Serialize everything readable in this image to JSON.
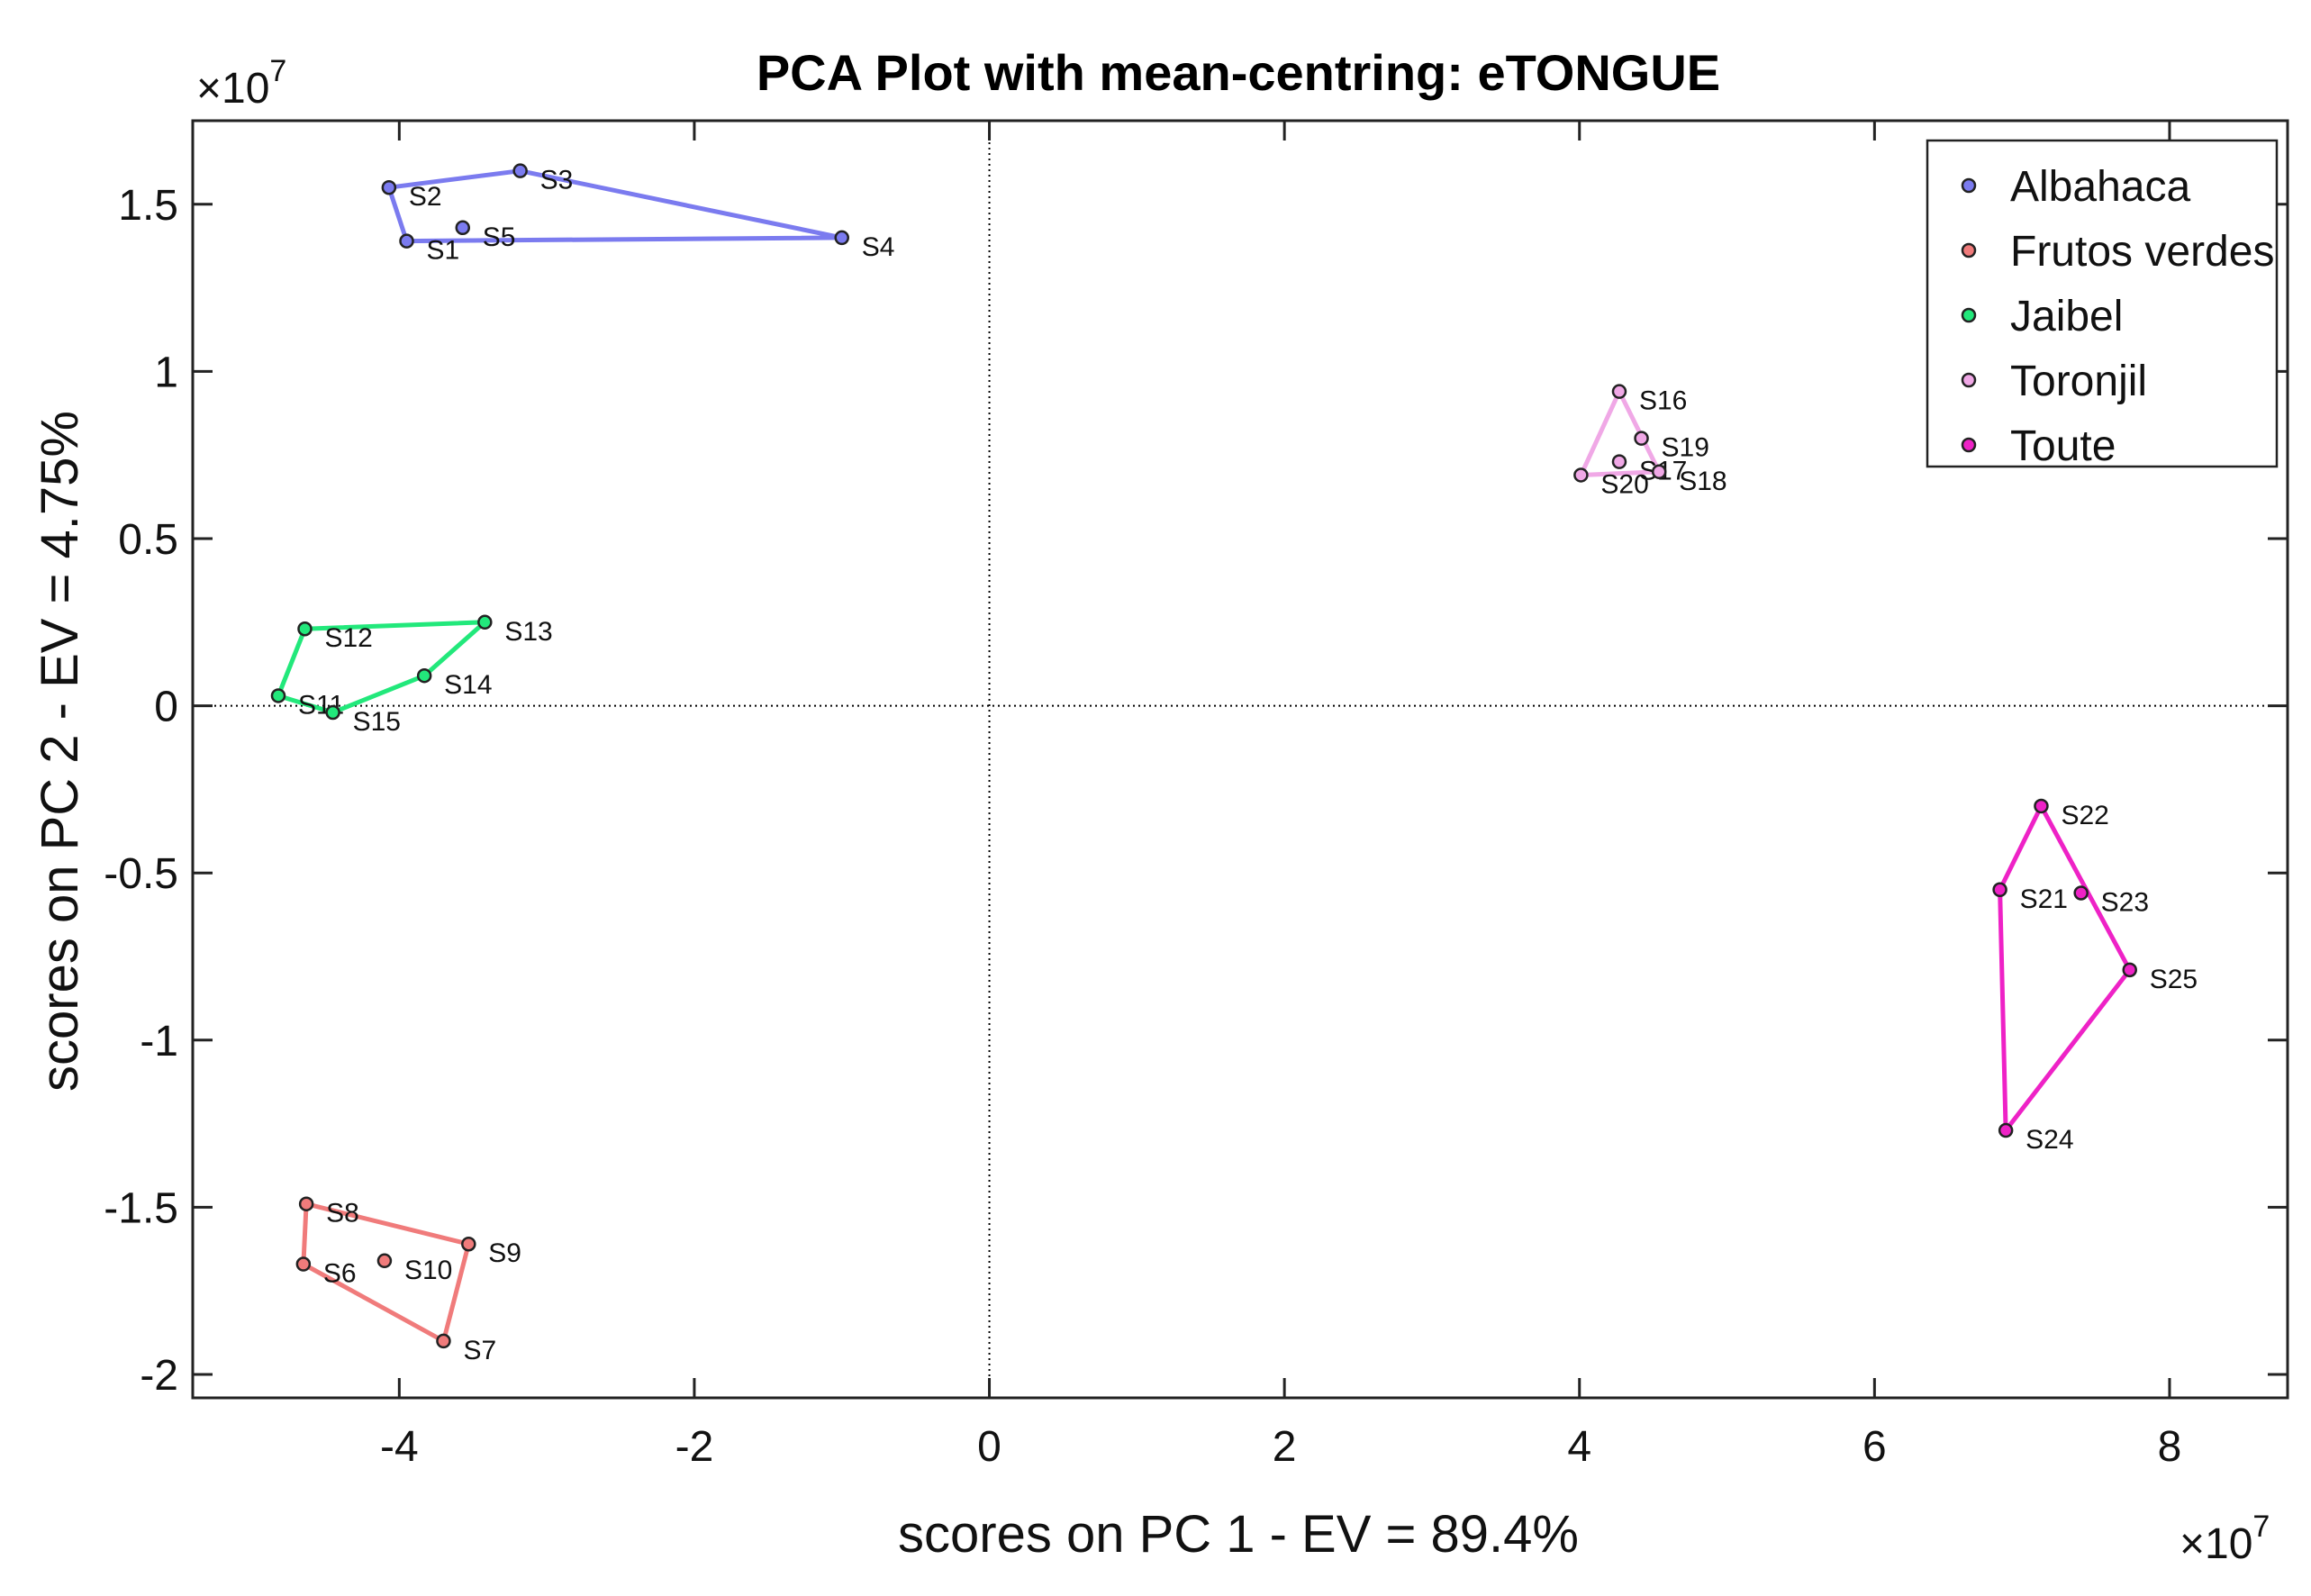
{
  "chart_data": {
    "type": "scatter",
    "title": "PCA Plot with mean-centring: eTONGUE",
    "xlabel": "scores on PC 1 - EV = 89.4%",
    "ylabel": "scores on PC 2 - EV = 4.75%",
    "x_exponent": "×10",
    "x_exponent_power": "7",
    "y_exponent": "×10",
    "y_exponent_power": "7",
    "xlim": [
      -5.4,
      8.8
    ],
    "ylim": [
      -2.07,
      1.75
    ],
    "xticks": [
      -4,
      -2,
      0,
      2,
      4,
      6,
      8
    ],
    "xtick_labels": [
      "-4",
      "-2",
      "0",
      "2",
      "4",
      "6",
      "8"
    ],
    "yticks": [
      -2,
      -1.5,
      -1,
      -0.5,
      0,
      0.5,
      1,
      1.5
    ],
    "ytick_labels": [
      "-2",
      "-1.5",
      "-1",
      "-0.5",
      "0",
      "0.5",
      "1",
      "1.5"
    ],
    "grid": false,
    "zero_lines": true,
    "legend_position": "top-right",
    "series": [
      {
        "name": "Albahaca",
        "color": "#7b7bef",
        "points": [
          {
            "label": "S1",
            "x": -3.95,
            "y": 1.39
          },
          {
            "label": "S2",
            "x": -4.07,
            "y": 1.55
          },
          {
            "label": "S3",
            "x": -3.18,
            "y": 1.6
          },
          {
            "label": "S4",
            "x": -1.0,
            "y": 1.4
          },
          {
            "label": "S5",
            "x": -3.57,
            "y": 1.43
          }
        ],
        "hull": [
          "S1",
          "S2",
          "S3",
          "S4"
        ]
      },
      {
        "name": "Frutos verdes",
        "color": "#f07b7b",
        "points": [
          {
            "label": "S6",
            "x": -4.65,
            "y": -1.67
          },
          {
            "label": "S7",
            "x": -3.7,
            "y": -1.9
          },
          {
            "label": "S8",
            "x": -4.63,
            "y": -1.49
          },
          {
            "label": "S9",
            "x": -3.53,
            "y": -1.61
          },
          {
            "label": "S10",
            "x": -4.1,
            "y": -1.66
          }
        ],
        "hull": [
          "S6",
          "S8",
          "S9",
          "S7"
        ]
      },
      {
        "name": "Jaibel",
        "color": "#22e87b",
        "points": [
          {
            "label": "S11",
            "x": -4.82,
            "y": 0.03
          },
          {
            "label": "S12",
            "x": -4.64,
            "y": 0.23
          },
          {
            "label": "S13",
            "x": -3.42,
            "y": 0.25
          },
          {
            "label": "S14",
            "x": -3.83,
            "y": 0.09
          },
          {
            "label": "S15",
            "x": -4.45,
            "y": -0.02
          }
        ],
        "hull": [
          "S11",
          "S12",
          "S13",
          "S14",
          "S15"
        ]
      },
      {
        "name": "Toronjil",
        "color": "#f0a8e6",
        "points": [
          {
            "label": "S16",
            "x": 4.27,
            "y": 0.94
          },
          {
            "label": "S17",
            "x": 4.27,
            "y": 0.73
          },
          {
            "label": "S18",
            "x": 4.54,
            "y": 0.7
          },
          {
            "label": "S19",
            "x": 4.42,
            "y": 0.8
          },
          {
            "label": "S20",
            "x": 4.01,
            "y": 0.69
          }
        ],
        "hull": [
          "S20",
          "S16",
          "S18"
        ]
      },
      {
        "name": "Toute",
        "color": "#ee22c6",
        "points": [
          {
            "label": "S21",
            "x": 6.85,
            "y": -0.55
          },
          {
            "label": "S22",
            "x": 7.13,
            "y": -0.3
          },
          {
            "label": "S23",
            "x": 7.4,
            "y": -0.56
          },
          {
            "label": "S24",
            "x": 6.89,
            "y": -1.27
          },
          {
            "label": "S25",
            "x": 7.73,
            "y": -0.79
          }
        ],
        "hull": [
          "S21",
          "S22",
          "S25",
          "S24"
        ]
      }
    ]
  }
}
